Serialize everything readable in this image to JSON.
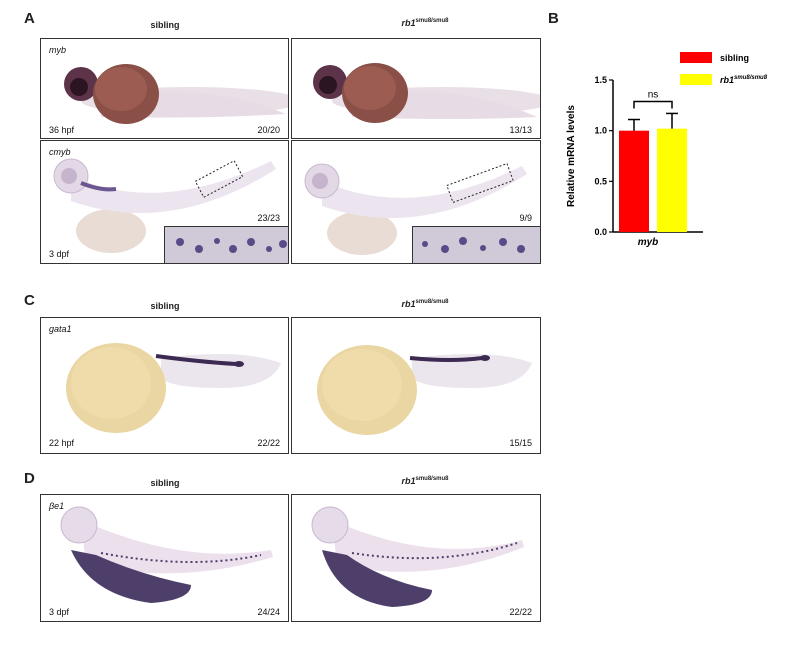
{
  "panel_labels": {
    "a": "A",
    "b": "B",
    "c": "C",
    "d": "D"
  },
  "col_titles": {
    "sibling": "sibling",
    "mutant_base": "rb1",
    "mutant_sup": "smu8/smu8"
  },
  "panels": {
    "a1": {
      "gene": "myb",
      "stage": "36 hpf",
      "count": "20/20"
    },
    "a2": {
      "count": "13/13"
    },
    "a3": {
      "gene": "cmyb",
      "stage": "3 dpf",
      "count": "23/23"
    },
    "a4": {
      "count": "9/9"
    },
    "c1": {
      "gene": "gata1",
      "stage": "22 hpf",
      "count": "22/22"
    },
    "c2": {
      "count": "15/15"
    },
    "d1": {
      "gene": "βe1",
      "stage": "3 dpf",
      "count": "24/24"
    },
    "d2": {
      "count": "22/22"
    }
  },
  "chart_data": {
    "type": "bar",
    "categories": [
      "myb"
    ],
    "series": [
      {
        "name": "sibling",
        "values": [
          1.0
        ],
        "error": [
          0.11
        ],
        "color": "#ff0000"
      },
      {
        "name": "rb1smu8/smu8",
        "values": [
          1.02
        ],
        "error": [
          0.15
        ],
        "color": "#ffff00"
      }
    ],
    "legend": [
      {
        "label": "sibling",
        "sup": "",
        "color": "#ff0000"
      },
      {
        "label": "rb1",
        "sup": "smu8/smu8",
        "color": "#ffff00"
      }
    ],
    "ylabel": "Relative mRNA levels",
    "xlabel": "myb",
    "ylim": [
      0,
      1.5
    ],
    "yticks": [
      "0.0",
      "0.5",
      "1.0",
      "1.5"
    ],
    "annotation": "ns"
  }
}
